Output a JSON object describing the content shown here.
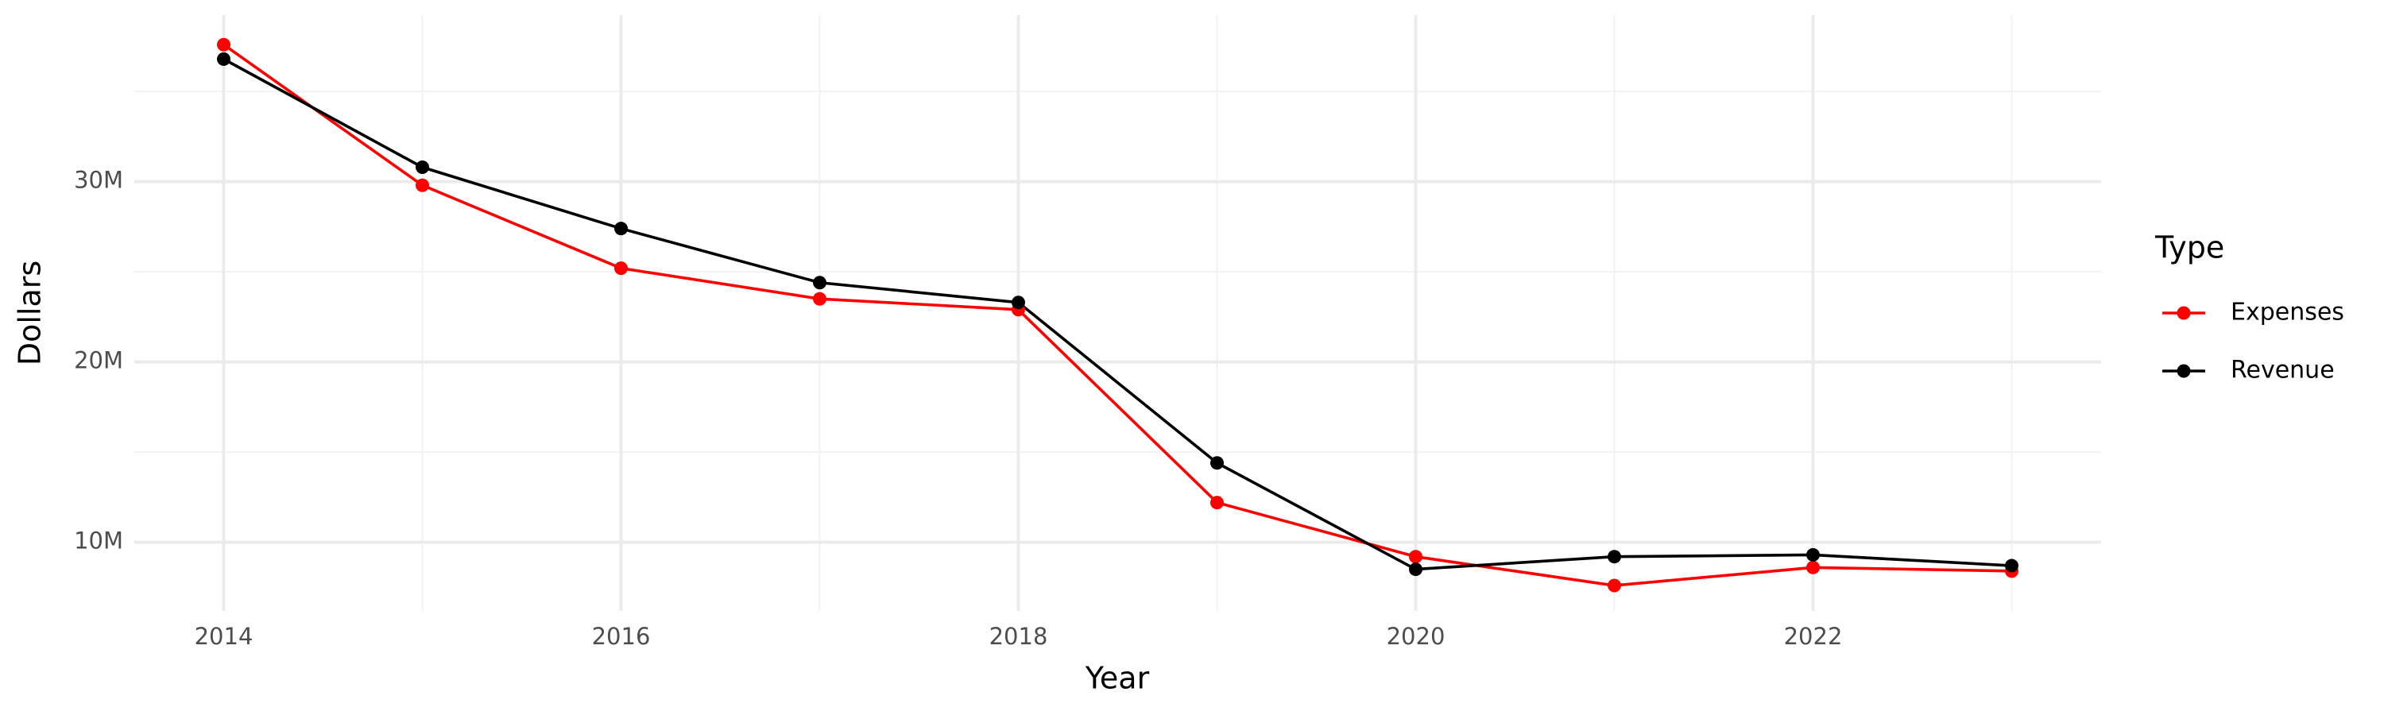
{
  "chart_data": {
    "type": "line",
    "x_label": "Year",
    "y_label": "Dollars",
    "x": [
      2014,
      2015,
      2016,
      2017,
      2018,
      2019,
      2020,
      2021,
      2022,
      2023
    ],
    "series": [
      {
        "name": "Expenses",
        "color": "#ff0000",
        "values": [
          37600000,
          29800000,
          25200000,
          23500000,
          22900000,
          12200000,
          9200000,
          7600000,
          8600000,
          8400000
        ]
      },
      {
        "name": "Revenue",
        "color": "#000000",
        "values": [
          36800000,
          30800000,
          27400000,
          24400000,
          23300000,
          14400000,
          8500000,
          9200000,
          9300000,
          8700000
        ]
      }
    ],
    "xlim": [
      2013.55,
      2023.45
    ],
    "xticks": [
      2014,
      2016,
      2018,
      2020,
      2022
    ],
    "x_minor_ticks": [
      2015,
      2017,
      2019,
      2021,
      2023
    ],
    "ylim": [
      6190000,
      39240000
    ],
    "yticks": [
      {
        "value": 10000000,
        "label": "10M"
      },
      {
        "value": 20000000,
        "label": "20M"
      },
      {
        "value": 30000000,
        "label": "30M"
      }
    ],
    "y_minor_ticks": [
      15000000,
      25000000,
      35000000
    ],
    "grid": true,
    "legend_title": "Type",
    "legend_position": "right"
  }
}
